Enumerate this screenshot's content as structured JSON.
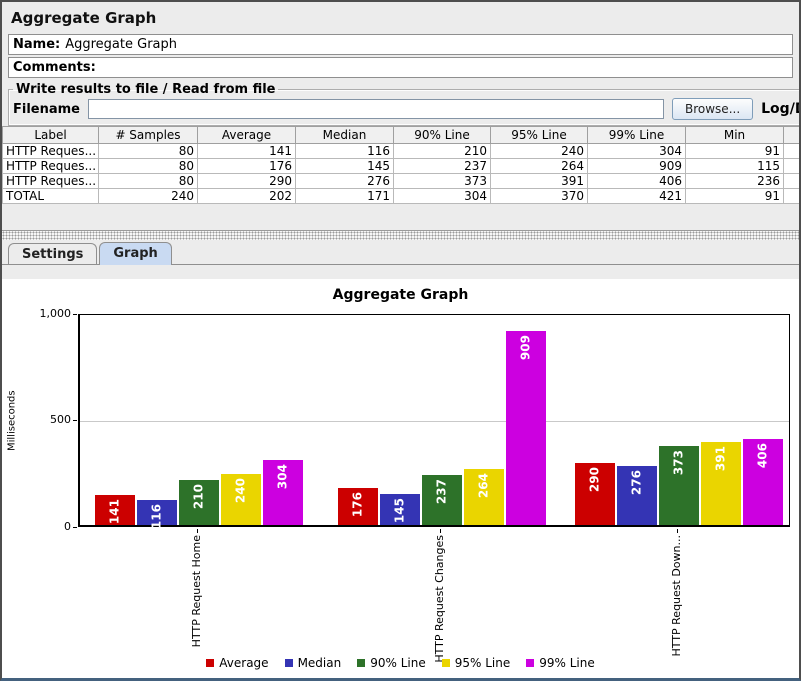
{
  "window": {
    "title": "Aggregate Graph"
  },
  "form": {
    "name_label": "Name:",
    "name_value": "Aggregate Graph",
    "comments_label": "Comments:",
    "comments_value": "",
    "file_group_title": "Write results to file / Read from file",
    "filename_label": "Filename",
    "filename_value": "",
    "browse_label": "Browse...",
    "log_display_label": "Log/Di"
  },
  "table": {
    "columns": [
      "Label",
      "# Samples",
      "Average",
      "Median",
      "90% Line",
      "95% Line",
      "99% Line",
      "Min",
      ""
    ],
    "rows": [
      [
        "HTTP Reques...",
        "80",
        "141",
        "116",
        "210",
        "240",
        "304",
        "91"
      ],
      [
        "HTTP Reques...",
        "80",
        "176",
        "145",
        "237",
        "264",
        "909",
        "115"
      ],
      [
        "HTTP Reques...",
        "80",
        "290",
        "276",
        "373",
        "391",
        "406",
        "236"
      ],
      [
        "TOTAL",
        "240",
        "202",
        "171",
        "304",
        "370",
        "421",
        "91"
      ]
    ]
  },
  "tabs": [
    {
      "label": "Settings",
      "selected": false
    },
    {
      "label": "Graph",
      "selected": true
    }
  ],
  "chart_data": {
    "type": "bar",
    "title": "Aggregate Graph",
    "xlabel": "",
    "ylabel": "Milliseconds",
    "ylim": [
      0,
      1000
    ],
    "yticks": [
      {
        "label": "0",
        "value": 0
      },
      {
        "label": "500",
        "value": 500
      },
      {
        "label": "1,000",
        "value": 1000
      }
    ],
    "grid": true,
    "legend_position": "bottom",
    "categories": [
      "HTTP Request Home",
      "HTTP Request Changes",
      "HTTP Request Down..."
    ],
    "series": [
      {
        "name": "Average",
        "color": "#cc0000",
        "values": [
          141,
          176,
          290
        ]
      },
      {
        "name": "Median",
        "color": "#3434b4",
        "values": [
          116,
          145,
          276
        ]
      },
      {
        "name": "90% Line",
        "color": "#2d7229",
        "values": [
          210,
          237,
          373
        ]
      },
      {
        "name": "95% Line",
        "color": "#ead500",
        "values": [
          240,
          264,
          391
        ]
      },
      {
        "name": "99% Line",
        "color": "#cc00e0",
        "values": [
          304,
          909,
          406
        ]
      }
    ]
  }
}
